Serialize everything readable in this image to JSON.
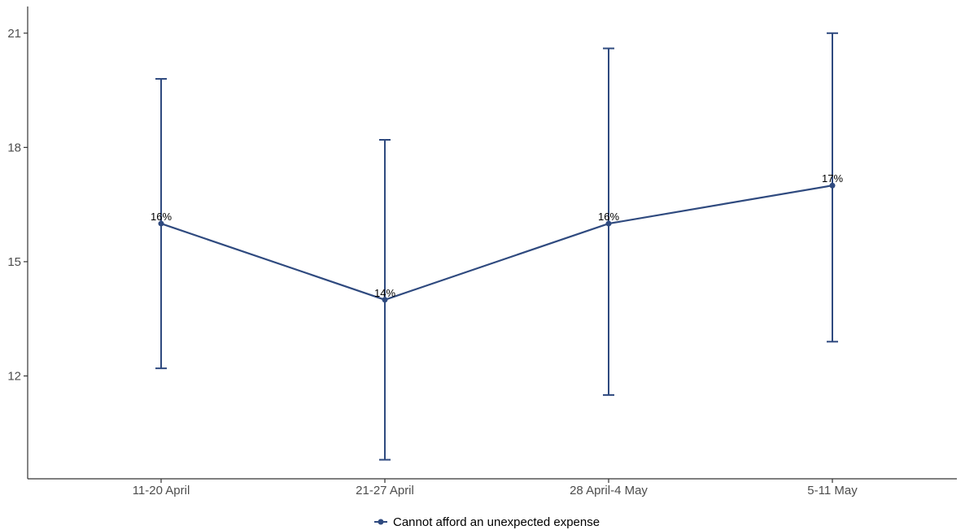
{
  "chart_data": {
    "type": "line",
    "categories": [
      "11-20 April",
      "21-27 April",
      "28 April-4 May",
      "5-11 May"
    ],
    "series": [
      {
        "name": "Cannot afford an unexpected expense",
        "values": [
          16,
          14,
          16,
          17
        ],
        "labels": [
          "16%",
          "14%",
          "16%",
          "17%"
        ],
        "error_low": [
          12.2,
          9.8,
          11.5,
          12.9
        ],
        "error_high": [
          19.8,
          18.2,
          20.6,
          21.0
        ]
      }
    ],
    "title": "",
    "xlabel": "",
    "ylabel": "",
    "yticks": [
      12,
      15,
      18,
      21
    ],
    "ytick_labels": [
      "12",
      "15",
      "18",
      "21"
    ],
    "ylim": [
      9.3,
      21.7
    ],
    "grid": false,
    "legend_position": "bottom",
    "colors": {
      "series": "#2f4a7f",
      "axis": "#333333"
    }
  }
}
